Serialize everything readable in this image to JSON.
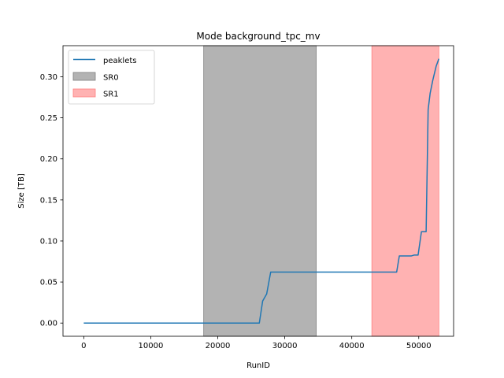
{
  "chart_data": {
    "type": "line",
    "title": "Mode background_tpc_mv",
    "xlabel": "RunID",
    "ylabel": "Size [TB]",
    "xlim": [
      -3100,
      55200
    ],
    "ylim": [
      -0.0161,
      0.3379
    ],
    "xticks": [
      0,
      10000,
      20000,
      30000,
      40000,
      50000
    ],
    "xtick_labels": [
      "0",
      "10000",
      "20000",
      "30000",
      "40000",
      "50000"
    ],
    "yticks": [
      0.0,
      0.05,
      0.1,
      0.15,
      0.2,
      0.25,
      0.3
    ],
    "ytick_labels": [
      "0.00",
      "0.05",
      "0.10",
      "0.15",
      "0.20",
      "0.25",
      "0.30"
    ],
    "grid": false,
    "legend_position": "top-left",
    "series": [
      {
        "name": "peaklets",
        "color": "#1f77b4",
        "x": [
          0,
          26200,
          26700,
          27300,
          27900,
          46700,
          47100,
          48900,
          49300,
          49900,
          50400,
          50500,
          51100,
          51400,
          51700,
          52100,
          52600,
          53000
        ],
        "y": [
          0.0,
          0.0,
          0.0268,
          0.0355,
          0.0621,
          0.0621,
          0.0818,
          0.0818,
          0.0828,
          0.0828,
          0.1113,
          0.1113,
          0.1113,
          0.26,
          0.28,
          0.296,
          0.313,
          0.322
        ]
      }
    ],
    "spans": [
      {
        "name": "SR0",
        "x0": 17900,
        "x1": 34700,
        "color": "#808080",
        "opacity": 0.6
      },
      {
        "name": "SR1",
        "x0": 43000,
        "x1": 53000,
        "color": "#ff7f7f",
        "opacity": 0.6
      }
    ]
  }
}
